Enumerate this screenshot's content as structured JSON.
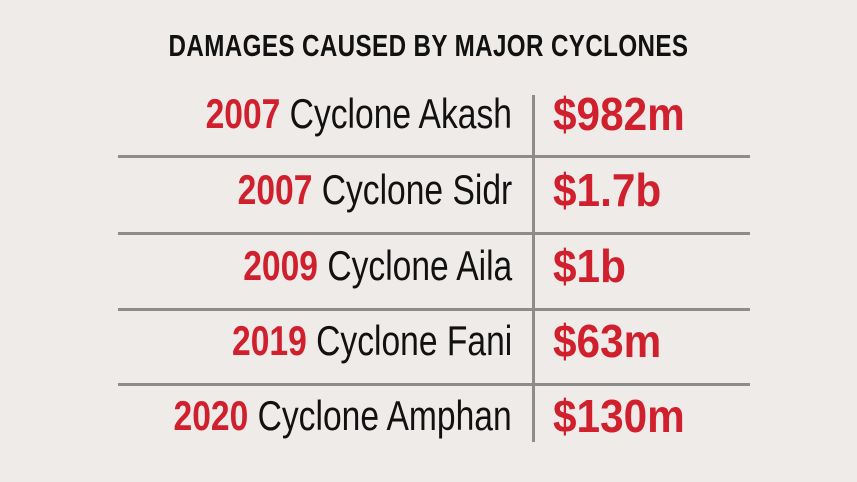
{
  "title": "DAMAGES CAUSED BY MAJOR CYCLONES",
  "rows": [
    {
      "year": "2007",
      "name": "Cyclone Akash",
      "damage": "$982m"
    },
    {
      "year": "2007",
      "name": "Cyclone Sidr",
      "damage": "$1.7b"
    },
    {
      "year": "2009",
      "name": "Cyclone Aila",
      "damage": "$1b"
    },
    {
      "year": "2019",
      "name": "Cyclone Fani",
      "damage": "$63m"
    },
    {
      "year": "2020",
      "name": "Cyclone Amphan",
      "damage": "$130m"
    }
  ],
  "colors": {
    "accent": "#d0202e",
    "background": "#efebe8",
    "divider": "#8c8c8c"
  }
}
